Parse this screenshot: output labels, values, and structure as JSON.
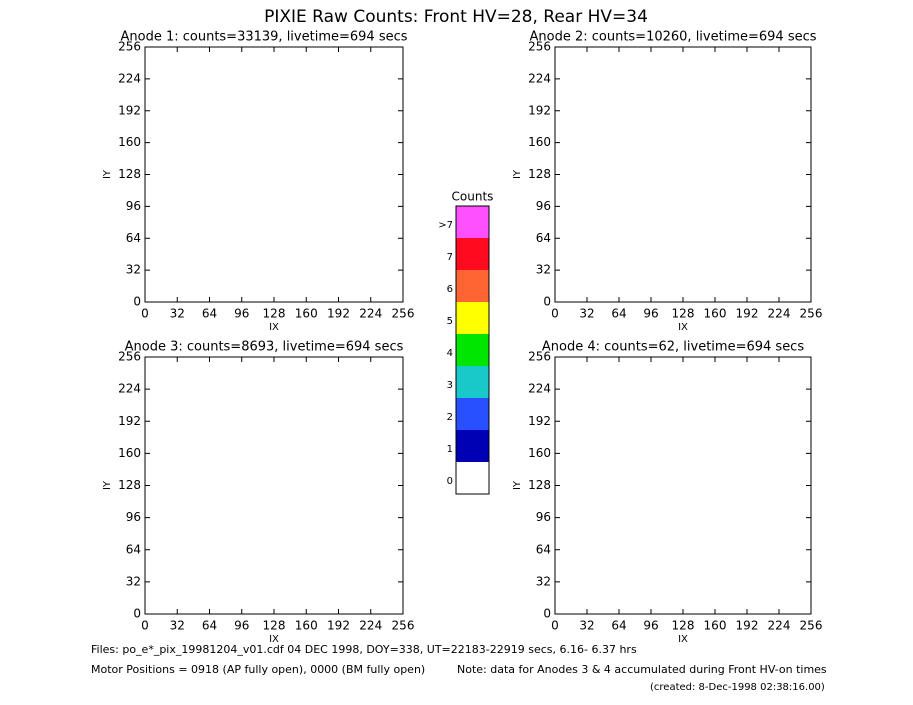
{
  "title": "PIXIE Raw Counts:  Front HV=28, Rear HV=34",
  "chart_data": [
    {
      "type": "image",
      "title": "Anode 1: counts=33139, livetime=694 secs",
      "x_label": "IX",
      "y_label": "IY",
      "xlim": [
        0,
        256
      ],
      "ylim": [
        0,
        256
      ],
      "xticks": [
        0,
        32,
        64,
        96,
        128,
        160,
        192,
        224,
        256
      ],
      "yticks": [
        0,
        32,
        64,
        96,
        128,
        160,
        192,
        224,
        256
      ]
    },
    {
      "type": "image",
      "title": "Anode 2: counts=10260, livetime=694 secs",
      "x_label": "IX",
      "y_label": "IY",
      "xlim": [
        0,
        256
      ],
      "ylim": [
        0,
        256
      ],
      "xticks": [
        0,
        32,
        64,
        96,
        128,
        160,
        192,
        224,
        256
      ],
      "yticks": [
        0,
        32,
        64,
        96,
        128,
        160,
        192,
        224,
        256
      ]
    },
    {
      "type": "image",
      "title": "Anode 3: counts=8693, livetime=694 secs",
      "x_label": "IX",
      "y_label": "IY",
      "xlim": [
        0,
        256
      ],
      "ylim": [
        0,
        256
      ],
      "xticks": [
        0,
        32,
        64,
        96,
        128,
        160,
        192,
        224,
        256
      ],
      "yticks": [
        0,
        32,
        64,
        96,
        128,
        160,
        192,
        224,
        256
      ]
    },
    {
      "type": "image",
      "title": "Anode 4: counts=62, livetime=694 secs",
      "x_label": "IX",
      "y_label": "IY",
      "xlim": [
        0,
        256
      ],
      "ylim": [
        0,
        256
      ],
      "xticks": [
        0,
        32,
        64,
        96,
        128,
        160,
        192,
        224,
        256
      ],
      "yticks": [
        0,
        32,
        64,
        96,
        128,
        160,
        192,
        224,
        256
      ]
    }
  ],
  "colorbar": {
    "title": "Counts",
    "levels": [
      "0",
      "1",
      "2",
      "3",
      "4",
      "5",
      "6",
      "7",
      ">7"
    ],
    "colors": [
      "#ffffff",
      "#0000b4",
      "#2850ff",
      "#19c8c8",
      "#00e600",
      "#ffff00",
      "#ff6432",
      "#ff0a1e",
      "#ff50ff"
    ]
  },
  "footer": {
    "files": "Files: po_e*_pix_19981204_v01.cdf    04 DEC 1998, DOY=338, UT=22183-22919 secs,  6.16- 6.37 hrs",
    "motor": "Motor Positions = 0918 (AP fully open), 0000 (BM fully open)",
    "note": "Note: data for Anodes 3 & 4 accumulated during Front HV-on times",
    "created": "(created:  8-Dec-1998 02:38:16.00)"
  }
}
